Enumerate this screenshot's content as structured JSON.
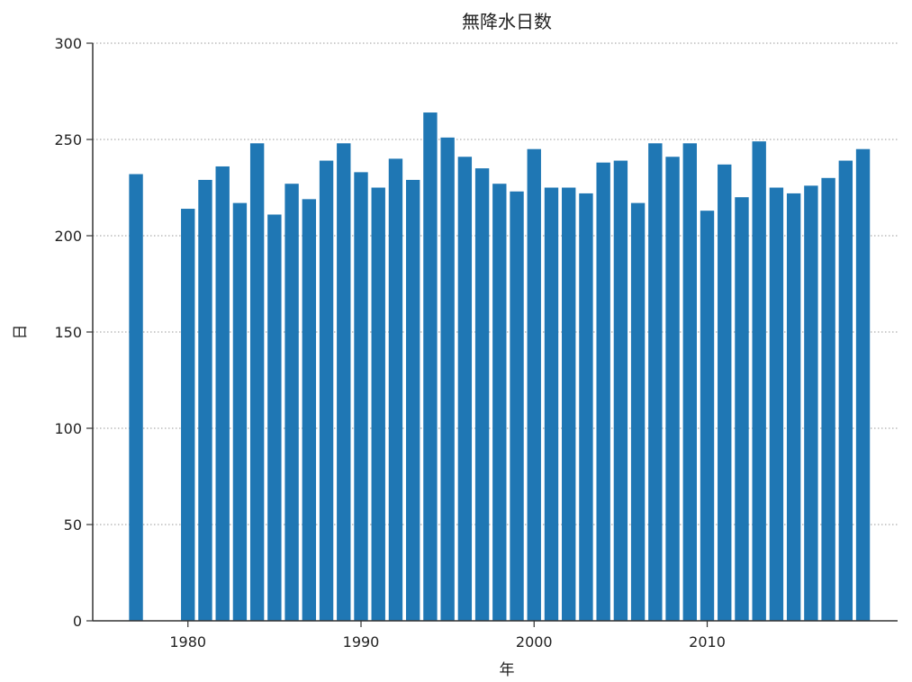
{
  "chart_data": {
    "type": "bar",
    "title": "無降水日数",
    "xlabel": "年",
    "ylabel": "日",
    "ylim": [
      0,
      300
    ],
    "xlim": [
      1974.5,
      2021
    ],
    "yticks": [
      0,
      50,
      100,
      150,
      200,
      250,
      300
    ],
    "xticks": [
      1980,
      1990,
      2000,
      2010
    ],
    "grid": "y-dotted",
    "bar_color": "#1f77b4",
    "x": [
      1977,
      1980,
      1981,
      1982,
      1983,
      1984,
      1985,
      1986,
      1987,
      1988,
      1989,
      1990,
      1991,
      1992,
      1993,
      1994,
      1995,
      1996,
      1997,
      1998,
      1999,
      2000,
      2001,
      2002,
      2003,
      2004,
      2005,
      2006,
      2007,
      2008,
      2009,
      2010,
      2011,
      2012,
      2013,
      2014,
      2015,
      2016,
      2017,
      2018,
      2019
    ],
    "values": [
      232,
      214,
      229,
      236,
      217,
      248,
      211,
      227,
      219,
      239,
      248,
      233,
      225,
      240,
      229,
      264,
      251,
      241,
      235,
      227,
      223,
      245,
      225,
      225,
      222,
      238,
      239,
      217,
      248,
      241,
      248,
      213,
      237,
      220,
      249,
      225,
      222,
      226,
      230,
      239,
      245
    ]
  }
}
